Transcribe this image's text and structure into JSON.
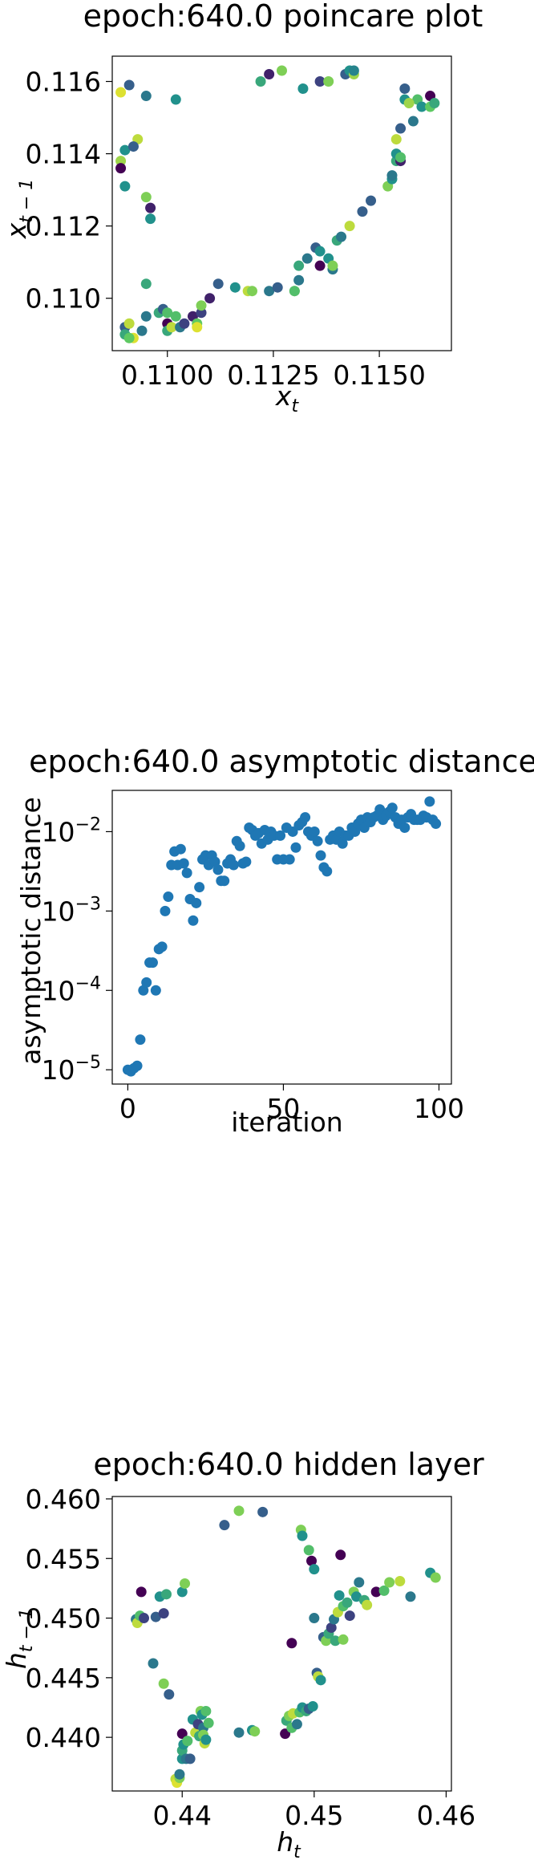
{
  "chart_data": [
    {
      "type": "scatter",
      "title": "epoch:640.0 poincare plot",
      "xlabel": {
        "base": "x",
        "sub": "t"
      },
      "ylabel": {
        "base": "x",
        "sub": "t − 1"
      },
      "xlim": [
        0.1087,
        0.1167
      ],
      "ylim": [
        0.10855,
        0.1167
      ],
      "xticks": [
        {
          "v": 0.11,
          "t": "0.1100"
        },
        {
          "v": 0.1125,
          "t": "0.1125"
        },
        {
          "v": 0.115,
          "t": "0.1150"
        }
      ],
      "yticks": [
        {
          "v": 0.11,
          "t": "0.110"
        },
        {
          "v": 0.112,
          "t": "0.112"
        },
        {
          "v": 0.114,
          "t": "0.114"
        },
        {
          "v": 0.116,
          "t": "0.116"
        }
      ],
      "points": [
        [
          0.1091,
          0.1159,
          0.3
        ],
        [
          0.1089,
          0.1157,
          0.95
        ],
        [
          0.1095,
          0.1156,
          0.4
        ],
        [
          0.1102,
          0.1155,
          0.5
        ],
        [
          0.109,
          0.1141,
          0.5
        ],
        [
          0.1089,
          0.1138,
          0.85
        ],
        [
          0.1093,
          0.1144,
          0.9
        ],
        [
          0.1092,
          0.1142,
          0.3
        ],
        [
          0.1089,
          0.1136,
          0.0
        ],
        [
          0.109,
          0.1131,
          0.5
        ],
        [
          0.1095,
          0.1128,
          0.8
        ],
        [
          0.1096,
          0.1125,
          0.1
        ],
        [
          0.1096,
          0.1122,
          0.5
        ],
        [
          0.1095,
          0.1104,
          0.6
        ],
        [
          0.109,
          0.1092,
          0.3
        ],
        [
          0.1091,
          0.1093,
          0.9
        ],
        [
          0.109,
          0.109,
          0.6
        ],
        [
          0.1092,
          0.1089,
          0.95
        ],
        [
          0.1091,
          0.1089,
          0.75
        ],
        [
          0.1094,
          0.1091,
          0.4
        ],
        [
          0.1095,
          0.1095,
          0.4
        ],
        [
          0.1098,
          0.1096,
          0.6
        ],
        [
          0.1099,
          0.1097,
          0.3
        ],
        [
          0.11,
          0.1096,
          0.7
        ],
        [
          0.1102,
          0.1095,
          0.7
        ],
        [
          0.11,
          0.1093,
          0.0
        ],
        [
          0.11,
          0.1091,
          0.6
        ],
        [
          0.1101,
          0.1092,
          0.9
        ],
        [
          0.1103,
          0.1092,
          0.4
        ],
        [
          0.1104,
          0.1093,
          0.2
        ],
        [
          0.1106,
          0.1095,
          0.1
        ],
        [
          0.1108,
          0.1096,
          0.2
        ],
        [
          0.1107,
          0.1093,
          0.75
        ],
        [
          0.1107,
          0.1092,
          0.95
        ],
        [
          0.1108,
          0.1098,
          0.8
        ],
        [
          0.111,
          0.11,
          0.1
        ],
        [
          0.1112,
          0.1104,
          0.3
        ],
        [
          0.1116,
          0.1103,
          0.5
        ],
        [
          0.1119,
          0.1102,
          0.9
        ],
        [
          0.112,
          0.1102,
          0.8
        ],
        [
          0.1124,
          0.1102,
          0.4
        ],
        [
          0.1126,
          0.1103,
          0.3
        ],
        [
          0.113,
          0.1102,
          0.8
        ],
        [
          0.113,
          0.1102,
          0.7
        ],
        [
          0.1131,
          0.1105,
          0.4
        ],
        [
          0.1131,
          0.1109,
          0.6
        ],
        [
          0.1133,
          0.1111,
          0.4
        ],
        [
          0.1135,
          0.1114,
          0.3
        ],
        [
          0.1136,
          0.1113,
          0.5
        ],
        [
          0.1136,
          0.1109,
          0.0
        ],
        [
          0.1138,
          0.1111,
          0.5
        ],
        [
          0.1139,
          0.1108,
          0.4
        ],
        [
          0.1139,
          0.1109,
          0.8
        ],
        [
          0.114,
          0.1116,
          0.6
        ],
        [
          0.1141,
          0.1117,
          0.4
        ],
        [
          0.1143,
          0.112,
          0.9
        ],
        [
          0.1146,
          0.1124,
          0.3
        ],
        [
          0.1148,
          0.1127,
          0.3
        ],
        [
          0.1152,
          0.1131,
          0.8
        ],
        [
          0.1153,
          0.1133,
          0.5
        ],
        [
          0.1153,
          0.1134,
          0.4
        ],
        [
          0.1154,
          0.1138,
          0.6
        ],
        [
          0.1154,
          0.114,
          0.5
        ],
        [
          0.1155,
          0.1138,
          0.1
        ],
        [
          0.1155,
          0.1139,
          0.7
        ],
        [
          0.1154,
          0.1144,
          0.9
        ],
        [
          0.1155,
          0.1147,
          0.3
        ],
        [
          0.1156,
          0.1155,
          0.5
        ],
        [
          0.1156,
          0.1158,
          0.3
        ],
        [
          0.1158,
          0.1149,
          0.4
        ],
        [
          0.1159,
          0.1155,
          0.7
        ],
        [
          0.116,
          0.1153,
          0.5
        ],
        [
          0.1162,
          0.1156,
          0.0
        ],
        [
          0.1162,
          0.1153,
          0.75
        ],
        [
          0.1163,
          0.1154,
          0.6
        ],
        [
          0.1157,
          0.1154,
          0.85
        ],
        [
          0.1124,
          0.1162,
          0.1
        ],
        [
          0.1127,
          0.1163,
          0.8
        ],
        [
          0.1122,
          0.116,
          0.6
        ],
        [
          0.1132,
          0.1158,
          0.5
        ],
        [
          0.1136,
          0.116,
          0.2
        ],
        [
          0.1138,
          0.116,
          0.8
        ],
        [
          0.1142,
          0.1162,
          0.3
        ],
        [
          0.1143,
          0.1163,
          0.5
        ],
        [
          0.1144,
          0.1162,
          0.85
        ],
        [
          0.1144,
          0.1163,
          0.45
        ]
      ]
    },
    {
      "type": "scatter",
      "title": "epoch:640.0 asymptotic distance",
      "xlabel": "iteration",
      "ylabel": "asymptotic distance",
      "yscale": "log",
      "xlim": [
        -5,
        104
      ],
      "ylim_exp": [
        -5.18,
        -1.48
      ],
      "xticks": [
        {
          "v": 0,
          "t": "0"
        },
        {
          "v": 50,
          "t": "50"
        },
        {
          "v": 100,
          "t": "100"
        }
      ],
      "yticks": [
        {
          "e": -5,
          "t": "-5"
        },
        {
          "e": -4,
          "t": "-4"
        },
        {
          "e": -3,
          "t": "-3"
        },
        {
          "e": -2,
          "t": "-2"
        }
      ],
      "ytick_base": "10",
      "color": "#1f77b4",
      "log10_values": [
        -5.0,
        -5.02,
        -4.98,
        -4.95,
        -4.62,
        -4.0,
        -3.9,
        -3.65,
        -3.65,
        -4.0,
        -3.48,
        -3.45,
        -3.0,
        -2.82,
        -2.42,
        -2.25,
        -2.42,
        -2.22,
        -2.4,
        -2.52,
        -2.85,
        -3.12,
        -2.9,
        -2.7,
        -2.35,
        -2.3,
        -2.42,
        -2.3,
        -2.38,
        -2.48,
        -2.62,
        -2.62,
        -2.4,
        -2.35,
        -2.42,
        -2.12,
        -2.18,
        -2.4,
        -2.38,
        -1.95,
        -1.98,
        -2.05,
        -2.02,
        -2.15,
        -1.98,
        -2.1,
        -2.0,
        -2.05,
        -2.35,
        -2.05,
        -2.35,
        -1.95,
        -2.35,
        -2.0,
        -2.2,
        -1.92,
        -1.88,
        -1.82,
        -2.0,
        -2.05,
        -2.0,
        -2.12,
        -2.3,
        -2.45,
        -2.5,
        -2.1,
        -2.05,
        -2.1,
        -2.0,
        -2.15,
        -2.05,
        -2.05,
        -1.95,
        -2.0,
        -1.9,
        -1.85,
        -1.95,
        -1.82,
        -1.88,
        -1.82,
        -1.8,
        -1.72,
        -1.85,
        -1.8,
        -1.75,
        -1.7,
        -1.82,
        -1.9,
        -1.85,
        -1.95,
        -1.82,
        -1.78,
        -1.85,
        -1.85,
        -1.85,
        -1.8,
        -1.82,
        -1.62,
        -1.85,
        -1.9
      ]
    },
    {
      "type": "scatter",
      "title": "epoch:640.0 hidden layer",
      "xlabel": {
        "base": "h",
        "sub": "t"
      },
      "ylabel": {
        "base": "h",
        "sub": "t − 1"
      },
      "xlim": [
        0.4347,
        0.4604
      ],
      "ylim": [
        0.4355,
        0.4602
      ],
      "xticks": [
        {
          "v": 0.44,
          "t": "0.44"
        },
        {
          "v": 0.45,
          "t": "0.45"
        },
        {
          "v": 0.46,
          "t": "0.46"
        }
      ],
      "yticks": [
        {
          "v": 0.44,
          "t": "0.440"
        },
        {
          "v": 0.445,
          "t": "0.445"
        },
        {
          "v": 0.45,
          "t": "0.450"
        },
        {
          "v": 0.455,
          "t": "0.455"
        },
        {
          "v": 0.46,
          "t": "0.460"
        }
      ],
      "points": [
        [
          0.4365,
          0.4499,
          0.4
        ],
        [
          0.4366,
          0.4496,
          0.9
        ],
        [
          0.4368,
          0.4502,
          0.7
        ],
        [
          0.4369,
          0.4522,
          0.0
        ],
        [
          0.4371,
          0.45,
          0.2
        ],
        [
          0.438,
          0.4501,
          0.3
        ],
        [
          0.4386,
          0.4504,
          0.2
        ],
        [
          0.4383,
          0.4518,
          0.5
        ],
        [
          0.4388,
          0.452,
          0.6
        ],
        [
          0.44,
          0.4522,
          0.5
        ],
        [
          0.4402,
          0.4529,
          0.8
        ],
        [
          0.4378,
          0.4462,
          0.4
        ],
        [
          0.4386,
          0.4445,
          0.8
        ],
        [
          0.439,
          0.4436,
          0.3
        ],
        [
          0.4395,
          0.4365,
          0.9
        ],
        [
          0.4396,
          0.4362,
          0.95
        ],
        [
          0.4398,
          0.4366,
          0.8
        ],
        [
          0.4398,
          0.4369,
          0.4
        ],
        [
          0.44,
          0.4382,
          0.5
        ],
        [
          0.44,
          0.4389,
          0.6
        ],
        [
          0.44,
          0.4403,
          0.0
        ],
        [
          0.4401,
          0.4394,
          0.5
        ],
        [
          0.4403,
          0.4382,
          0.4
        ],
        [
          0.4404,
          0.4397,
          0.7
        ],
        [
          0.4406,
          0.4382,
          0.3
        ],
        [
          0.4408,
          0.4415,
          0.5
        ],
        [
          0.441,
          0.4404,
          0.9
        ],
        [
          0.4412,
          0.4411,
          0.2
        ],
        [
          0.4413,
          0.4401,
          0.6
        ],
        [
          0.4414,
          0.4422,
          0.8
        ],
        [
          0.4415,
          0.4419,
          0.5
        ],
        [
          0.4416,
          0.4408,
          0.4
        ],
        [
          0.4416,
          0.4402,
          0.8
        ],
        [
          0.4417,
          0.4395,
          0.9
        ],
        [
          0.4418,
          0.4422,
          0.7
        ],
        [
          0.4418,
          0.4398,
          0.5
        ],
        [
          0.442,
          0.4412,
          0.7
        ],
        [
          0.4432,
          0.4578,
          0.3
        ],
        [
          0.4443,
          0.459,
          0.8
        ],
        [
          0.4461,
          0.4589,
          0.3
        ],
        [
          0.4443,
          0.4404,
          0.4
        ],
        [
          0.4453,
          0.4406,
          0.5
        ],
        [
          0.4455,
          0.4405,
          0.8
        ],
        [
          0.4478,
          0.4403,
          0.0
        ],
        [
          0.4479,
          0.4414,
          0.6
        ],
        [
          0.4481,
          0.4418,
          0.8
        ],
        [
          0.4483,
          0.4408,
          0.7
        ],
        [
          0.4484,
          0.442,
          0.9
        ],
        [
          0.4487,
          0.4411,
          0.4
        ],
        [
          0.4489,
          0.4421,
          0.7
        ],
        [
          0.4491,
          0.4425,
          0.5
        ],
        [
          0.4494,
          0.4422,
          0.6
        ],
        [
          0.4496,
          0.4424,
          0.3
        ],
        [
          0.4499,
          0.4426,
          0.5
        ],
        [
          0.449,
          0.4574,
          0.8
        ],
        [
          0.4491,
          0.4569,
          0.5
        ],
        [
          0.4496,
          0.4557,
          0.7
        ],
        [
          0.4498,
          0.4548,
          0.0
        ],
        [
          0.45,
          0.4541,
          0.5
        ],
        [
          0.4502,
          0.4454,
          0.3
        ],
        [
          0.4503,
          0.4451,
          0.9
        ],
        [
          0.4505,
          0.4448,
          0.5
        ],
        [
          0.4507,
          0.4484,
          0.3
        ],
        [
          0.4509,
          0.4481,
          0.8
        ],
        [
          0.4511,
          0.4487,
          0.6
        ],
        [
          0.4513,
          0.4492,
          0.2
        ],
        [
          0.4515,
          0.4499,
          0.4
        ],
        [
          0.4516,
          0.4481,
          0.6
        ],
        [
          0.4518,
          0.4505,
          0.9
        ],
        [
          0.4519,
          0.4519,
          0.5
        ],
        [
          0.452,
          0.4553,
          0.0
        ],
        [
          0.4522,
          0.451,
          0.7
        ],
        [
          0.4522,
          0.4482,
          0.8
        ],
        [
          0.4525,
          0.4513,
          0.6
        ],
        [
          0.4527,
          0.4502,
          0.2
        ],
        [
          0.453,
          0.4522,
          0.8
        ],
        [
          0.4532,
          0.4518,
          0.5
        ],
        [
          0.4534,
          0.453,
          0.4
        ],
        [
          0.4538,
          0.4515,
          0.6
        ],
        [
          0.454,
          0.4511,
          0.9
        ],
        [
          0.4547,
          0.4522,
          0.0
        ],
        [
          0.4553,
          0.4523,
          0.7
        ],
        [
          0.4557,
          0.453,
          0.8
        ],
        [
          0.4565,
          0.4531,
          0.9
        ],
        [
          0.4573,
          0.4518,
          0.4
        ],
        [
          0.4588,
          0.4538,
          0.5
        ],
        [
          0.4592,
          0.4534,
          0.8
        ],
        [
          0.4483,
          0.4479,
          0.0
        ],
        [
          0.45,
          0.45,
          0.4
        ]
      ]
    }
  ]
}
